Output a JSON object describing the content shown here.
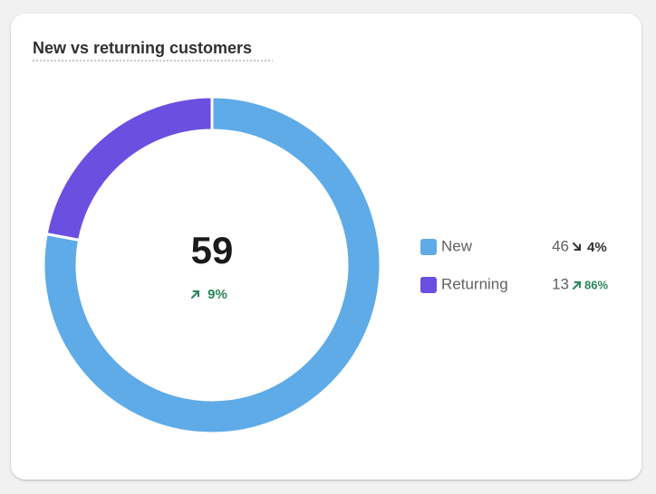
{
  "chart_data": {
    "type": "donut",
    "title": "New vs returning customers",
    "categories": [
      "New",
      "Returning"
    ],
    "values": [
      46,
      13
    ],
    "colors": [
      "#5eabe8",
      "#6b4fe0"
    ],
    "total": 59,
    "total_change": {
      "value": 9,
      "label": "9%"
    },
    "total_change_direction": "up",
    "changes": [
      4,
      86
    ],
    "change_labels": [
      "4%",
      "86%"
    ],
    "change_directions": [
      "down",
      "up"
    ]
  }
}
